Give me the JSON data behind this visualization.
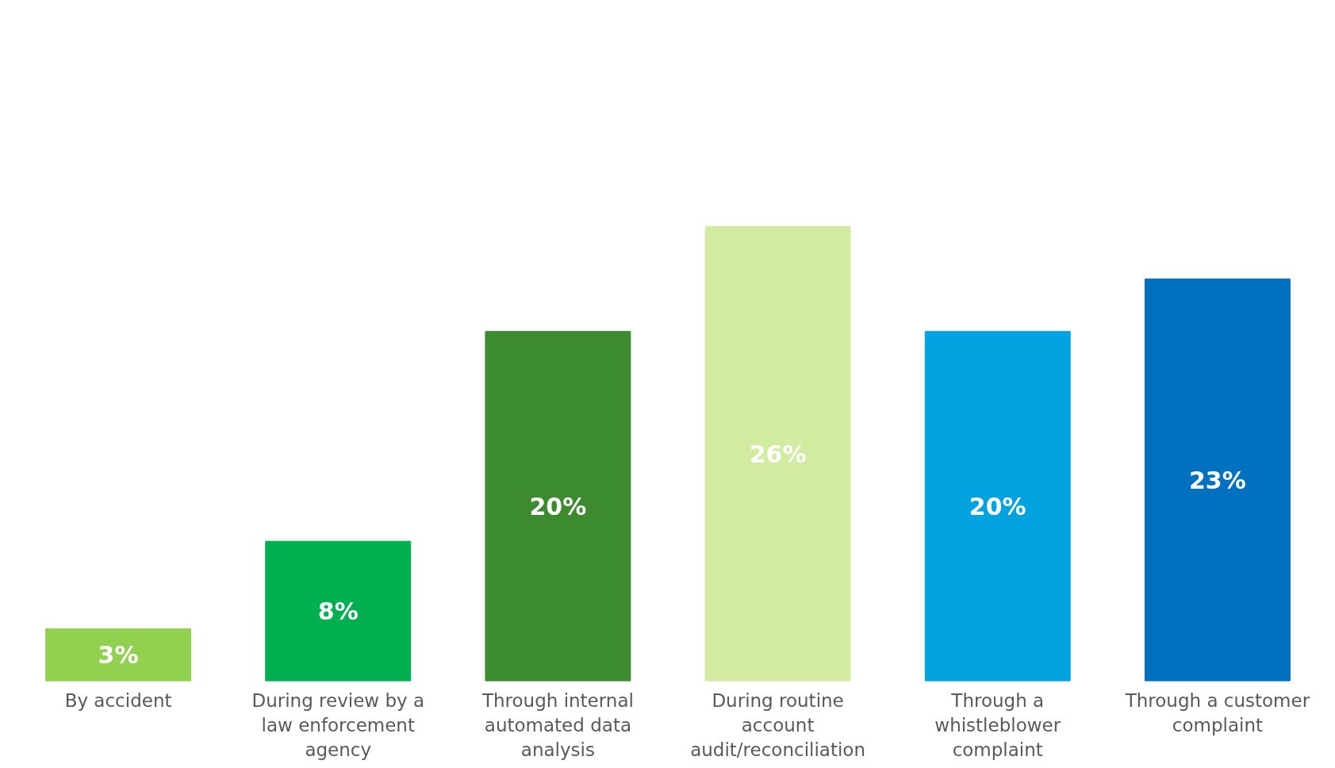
{
  "chart_data": {
    "type": "bar",
    "categories": [
      "By accident",
      "During review by a law enforcement agency",
      "Through internal automated data analysis",
      "During routine account audit/reconciliation",
      "Through a whistleblower complaint",
      "Through a customer complaint"
    ],
    "values": [
      3,
      8,
      20,
      26,
      20,
      23
    ],
    "colors": [
      "#92d050",
      "#00b050",
      "#3d8b2f",
      "#d2eba0",
      "#00a3e0",
      "#0070c0"
    ],
    "value_labels": [
      "3%",
      "8%",
      "20%",
      "26%",
      "20%",
      "23%"
    ],
    "grid": false
  }
}
